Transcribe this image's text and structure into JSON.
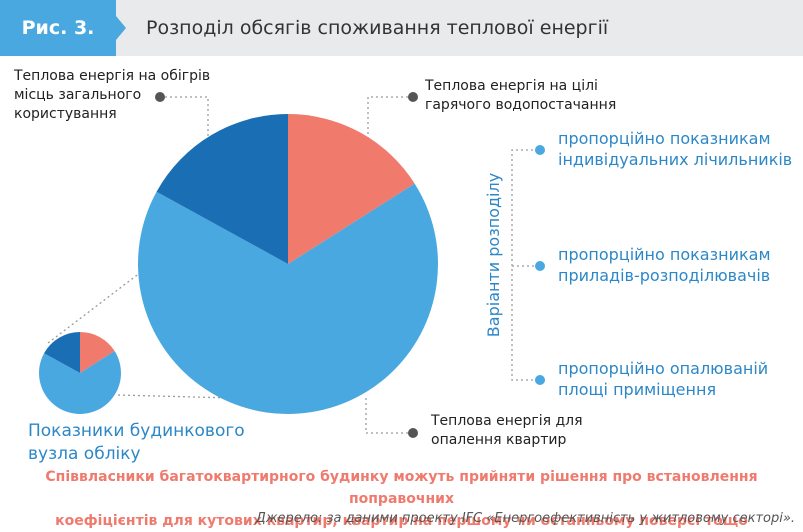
{
  "figure": {
    "label": "Рис. 3.",
    "title": "Розподіл обсягів споживання теплової енергії"
  },
  "labels": {
    "common_areas": [
      "Теплова енергія на обігрів",
      "місць загального",
      "користування"
    ],
    "hot_water": [
      "Теплова енергія на цілі",
      "гарячого водопостачання"
    ],
    "apartments": [
      "Теплова енергія для",
      "опалення квартир"
    ],
    "building_meter": [
      "Показники будинкового",
      "вузла обліку"
    ]
  },
  "distribution": {
    "heading": "Варіанти розподілу",
    "options": [
      [
        "пропорційно показникам",
        "індивідуальних лічильників"
      ],
      [
        "пропорційно показникам",
        "приладів-розподілювачів"
      ],
      [
        "пропорційно опалюваній",
        "площі приміщення"
      ]
    ]
  },
  "note": [
    "Співвласники багатоквартирного будинку можуть прийняти рішення про встановлення поправочних",
    "коефіцієнтів для кутових квартир, квартир на першому чи останньому поверсі тощо"
  ],
  "source": "Джерело: за даними проекту IFC «Енергоефективність у житловому секторі».",
  "chart_data": {
    "type": "pie",
    "slices": [
      {
        "label": "Теплова енергія на цілі гарячого водопостачання",
        "value": 16,
        "color": "#f07a6c"
      },
      {
        "label": "Теплова енергія для опалення квартир",
        "value": 67,
        "color": "#4aa8e0"
      },
      {
        "label": "Теплова енергія на обігрів місць загального користування",
        "value": 17,
        "color": "#1a6fb4"
      }
    ]
  },
  "colors": {
    "accent_blue": "#4aa8e0",
    "dark_blue": "#1a6fb4",
    "salmon": "#f07a6c",
    "text_blue": "#2c87c7",
    "header_bg": "#e9eaeb"
  }
}
